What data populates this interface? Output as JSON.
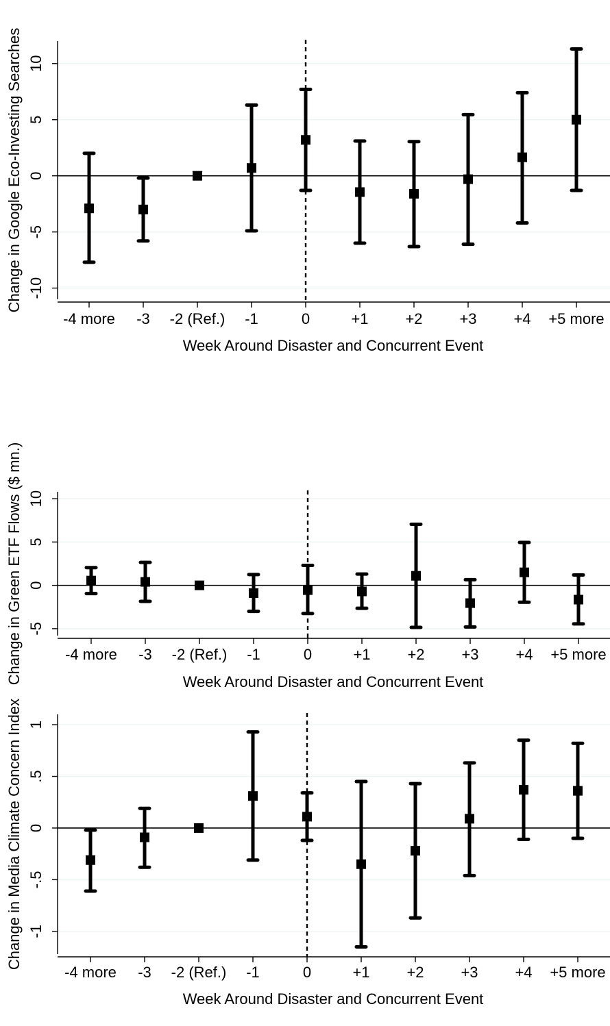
{
  "chart_data": [
    {
      "type": "scatter",
      "title": "",
      "xlabel": "Week Around Disaster and Concurrent Event",
      "ylabel": "Change in Google Eco-Investing Searches",
      "categories": [
        "-4 more",
        "-3",
        "-2 (Ref.)",
        "-1",
        "0",
        "+1",
        "+2",
        "+3",
        "+4",
        "+5 more"
      ],
      "ylim": [
        -11,
        12
      ],
      "yticks": [
        10,
        5,
        0,
        -5,
        -10
      ],
      "ytick_labels": [
        "10",
        "5",
        "0",
        "-5",
        "-10"
      ],
      "grid": true,
      "reference_line_at_category": "0",
      "series": [
        {
          "values": [
            -2.9,
            -3.0,
            0.0,
            0.7,
            3.2,
            -1.45,
            -1.6,
            -0.3,
            1.65,
            5.0
          ],
          "ci_low": [
            -7.7,
            -5.8,
            null,
            -4.9,
            -1.3,
            -6.0,
            -6.3,
            -6.1,
            -4.2,
            -1.3
          ],
          "ci_high": [
            2.0,
            -0.2,
            null,
            6.3,
            7.7,
            3.1,
            3.05,
            5.45,
            7.4,
            11.3
          ]
        }
      ]
    },
    {
      "type": "scatter",
      "title": "",
      "xlabel": "Week Around Disaster and Concurrent Event",
      "ylabel": "Change in Green ETF Flows ($ mn.)",
      "categories": [
        "-4 more",
        "-3",
        "-2 (Ref.)",
        "-1",
        "0",
        "+1",
        "+2",
        "+3",
        "+4",
        "+5 more"
      ],
      "ylim": [
        -5.8,
        10.8
      ],
      "yticks": [
        10,
        5,
        0,
        -5
      ],
      "ytick_labels": [
        "10",
        "5",
        "0",
        "-5"
      ],
      "grid": true,
      "reference_line_at_category": "0",
      "series": [
        {
          "values": [
            0.55,
            0.4,
            0.0,
            -0.9,
            -0.55,
            -0.7,
            1.1,
            -2.05,
            1.5,
            -1.65
          ],
          "ci_low": [
            -0.95,
            -1.85,
            null,
            -3.0,
            -3.25,
            -2.65,
            -4.85,
            -4.8,
            -1.95,
            -4.45
          ],
          "ci_high": [
            2.05,
            2.65,
            null,
            1.25,
            2.3,
            1.3,
            7.05,
            0.65,
            4.95,
            1.2
          ]
        }
      ]
    },
    {
      "type": "scatter",
      "title": "",
      "xlabel": "Week Around Disaster and Concurrent Event",
      "ylabel": "Change in Media Climate Concern Index",
      "categories": [
        "-4 more",
        "-3",
        "-2 (Ref.)",
        "-1",
        "0",
        "+1",
        "+2",
        "+3",
        "+4",
        "+5 more"
      ],
      "ylim": [
        -1.22,
        1.1
      ],
      "yticks": [
        1,
        0.5,
        0,
        -0.5,
        -1
      ],
      "ytick_labels": [
        "1",
        ".5",
        "0",
        "-.5",
        "-1"
      ],
      "grid": true,
      "reference_line_at_category": "0",
      "series": [
        {
          "values": [
            -0.31,
            -0.09,
            0.0,
            0.31,
            0.11,
            -0.35,
            -0.22,
            0.09,
            0.37,
            0.36
          ],
          "ci_low": [
            -0.61,
            -0.38,
            null,
            -0.31,
            -0.12,
            -1.15,
            -0.87,
            -0.46,
            -0.11,
            -0.1
          ],
          "ci_high": [
            -0.02,
            0.19,
            null,
            0.93,
            0.34,
            0.45,
            0.43,
            0.63,
            0.85,
            0.82
          ]
        }
      ]
    }
  ]
}
